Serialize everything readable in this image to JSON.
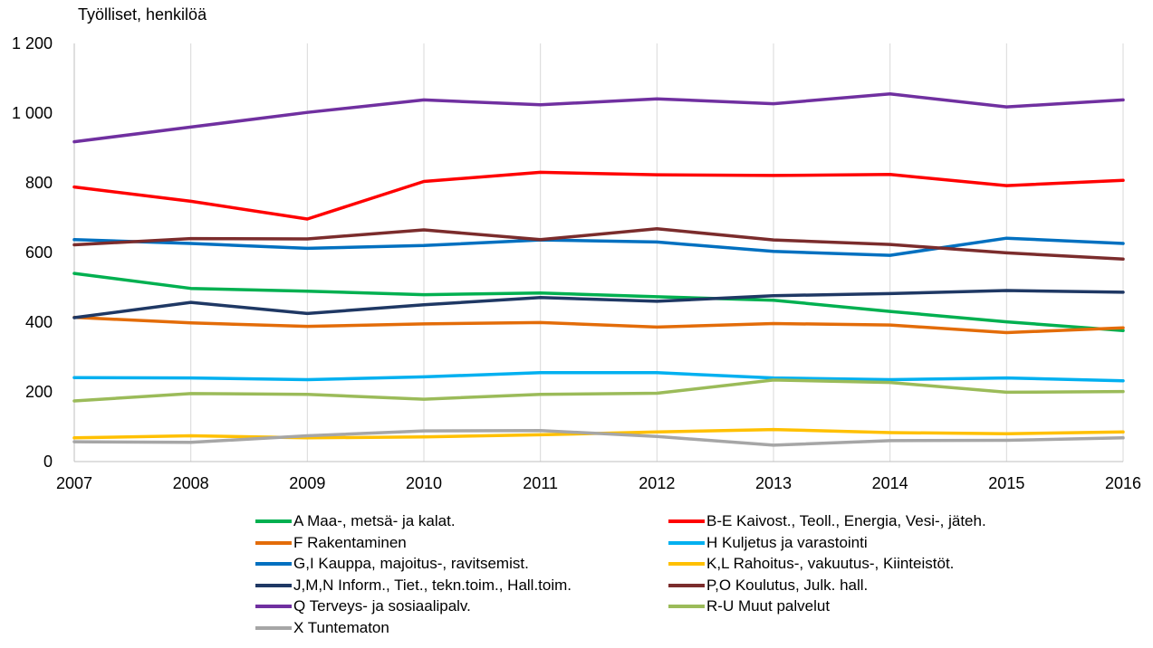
{
  "chart_data": {
    "type": "line",
    "title": "",
    "xlabel": "",
    "ylabel": "Työlliset, henkilöä",
    "x": [
      "2007",
      "2008",
      "2009",
      "2010",
      "2011",
      "2012",
      "2013",
      "2014",
      "2015",
      "2016"
    ],
    "ylim": [
      0,
      1200
    ],
    "yticks": [
      0,
      200,
      400,
      600,
      800,
      1000,
      1200
    ],
    "ytick_labels": [
      "0",
      "200",
      "400",
      "600",
      "800",
      "1 000",
      "1 200"
    ],
    "grid": "vertical",
    "legend_position": "bottom",
    "series": [
      {
        "name": "A Maa-, metsä- ja kalat.",
        "color": "#00b050",
        "values": [
          540,
          497,
          489,
          479,
          484,
          473,
          463,
          431,
          401,
          376
        ]
      },
      {
        "name": "B-E Kaivost., Teoll., Energia, Vesi-, jäteh.",
        "color": "#ff0000",
        "values": [
          788,
          747,
          696,
          804,
          830,
          823,
          821,
          824,
          792,
          807
        ]
      },
      {
        "name": "F Rakentaminen",
        "color": "#e36c09",
        "values": [
          414,
          398,
          388,
          395,
          399,
          386,
          396,
          392,
          370,
          384
        ]
      },
      {
        "name": "H Kuljetus ja varastointi",
        "color": "#00b0f0",
        "values": [
          241,
          240,
          235,
          243,
          255,
          255,
          240,
          235,
          240,
          232
        ]
      },
      {
        "name": "G,I Kauppa, majoitus-, ravitsemist.",
        "color": "#0070c0",
        "values": [
          637,
          626,
          612,
          620,
          636,
          630,
          603,
          592,
          641,
          626
        ]
      },
      {
        "name": "K,L Rahoitus-, vakuutus-, Kiinteistöt.",
        "color": "#ffc000",
        "values": [
          68,
          74,
          68,
          71,
          77,
          85,
          92,
          83,
          80,
          85
        ]
      },
      {
        "name": "J,M,N Inform., Tiet., tekn.toim., Hall.toim.",
        "color": "#1f3864",
        "values": [
          413,
          457,
          425,
          450,
          471,
          460,
          476,
          482,
          491,
          486
        ]
      },
      {
        "name": "P,O Koulutus, Julk. hall.",
        "color": "#7b2c2c",
        "values": [
          622,
          640,
          639,
          665,
          637,
          668,
          636,
          623,
          599,
          581
        ]
      },
      {
        "name": "Q Terveys- ja sosiaalipalv.",
        "color": "#7030a0",
        "values": [
          918,
          960,
          1002,
          1038,
          1024,
          1041,
          1027,
          1055,
          1018,
          1038
        ]
      },
      {
        "name": "R-U Muut palvelut",
        "color": "#9bbb59",
        "values": [
          174,
          195,
          193,
          179,
          193,
          196,
          234,
          227,
          199,
          201
        ]
      },
      {
        "name": "X Tuntematon",
        "color": "#a6a6a6",
        "values": [
          57,
          55,
          74,
          88,
          89,
          72,
          47,
          60,
          61,
          68
        ]
      }
    ]
  }
}
